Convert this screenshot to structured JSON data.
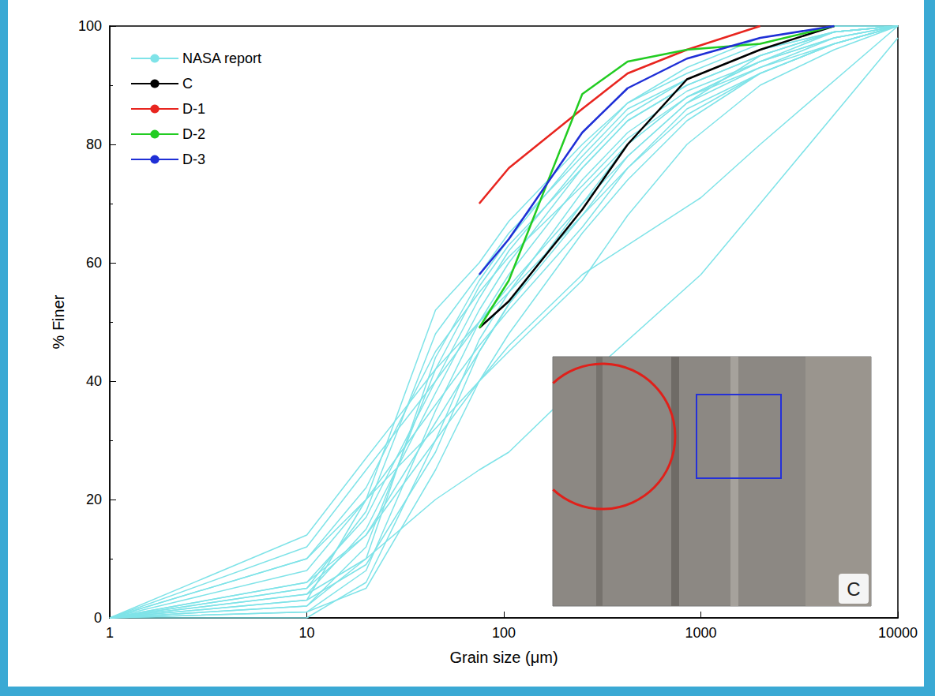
{
  "chart_data": {
    "type": "line",
    "x_label": "Grain size (μm)",
    "y_label": "% Finer",
    "log": "x",
    "xlim": [
      1,
      10000
    ],
    "xticks": [
      1,
      10,
      100,
      1000,
      10000
    ],
    "ylim": [
      0,
      100
    ],
    "yticks": [
      0,
      20,
      40,
      60,
      80,
      100
    ],
    "grid": false,
    "legend": "upper left",
    "annotations": [
      "C"
    ],
    "series": [
      {
        "name": "NASA report",
        "color": "#7fe3e8",
        "x": [
          1,
          10,
          20,
          45,
          75,
          106,
          250,
          425,
          850,
          2000,
          4750,
          10000
        ],
        "values": [
          0,
          2,
          12,
          42,
          56,
          63,
          76,
          84,
          90,
          95,
          99,
          100
        ]
      },
      {
        "name": "NASA report",
        "color": "#7fe3e8",
        "x": [
          1,
          10,
          20,
          45,
          75,
          106,
          250,
          425,
          850,
          2000,
          4750,
          10000
        ],
        "values": [
          0,
          5,
          18,
          48,
          58,
          65,
          78,
          86,
          91,
          96,
          99,
          100
        ]
      },
      {
        "name": "NASA report",
        "color": "#7fe3e8",
        "x": [
          1,
          10,
          20,
          45,
          75,
          106,
          250,
          425,
          850,
          2000,
          4750,
          10000
        ],
        "values": [
          0,
          1,
          8,
          35,
          50,
          58,
          74,
          82,
          89,
          94,
          98,
          100
        ]
      },
      {
        "name": "NASA report",
        "color": "#7fe3e8",
        "x": [
          1,
          10,
          20,
          45,
          75,
          106,
          250,
          425,
          850,
          2000,
          4750,
          10000
        ],
        "values": [
          0,
          10,
          22,
          45,
          55,
          61,
          73,
          81,
          88,
          94,
          98,
          100
        ]
      },
      {
        "name": "NASA report",
        "color": "#7fe3e8",
        "x": [
          1,
          10,
          20,
          45,
          75,
          106,
          250,
          425,
          850,
          2000,
          4750,
          10000
        ],
        "values": [
          0,
          3,
          20,
          52,
          60,
          67,
          80,
          87,
          92,
          97,
          100,
          100
        ]
      },
      {
        "name": "NASA report",
        "color": "#7fe3e8",
        "x": [
          1,
          10,
          20,
          45,
          75,
          106,
          250,
          425,
          850,
          2000,
          4750,
          10000
        ],
        "values": [
          0,
          12,
          25,
          40,
          50,
          56,
          70,
          78,
          87,
          93,
          97,
          100
        ]
      },
      {
        "name": "NASA report",
        "color": "#7fe3e8",
        "x": [
          1,
          10,
          20,
          45,
          75,
          106,
          250,
          425,
          850,
          2000,
          4750,
          10000
        ],
        "values": [
          0,
          0,
          6,
          30,
          47,
          55,
          72,
          80,
          88,
          93,
          98,
          100
        ]
      },
      {
        "name": "NASA report",
        "color": "#7fe3e8",
        "x": [
          1,
          10,
          20,
          45,
          75,
          106,
          250,
          425,
          850,
          2000,
          4750,
          10000
        ],
        "values": [
          0,
          4,
          15,
          38,
          52,
          60,
          76,
          84,
          90,
          95,
          99,
          100
        ]
      },
      {
        "name": "NASA report",
        "color": "#7fe3e8",
        "x": [
          1,
          10,
          20,
          45,
          75,
          106,
          250,
          425,
          850,
          2000,
          4750,
          10000
        ],
        "values": [
          0,
          8,
          20,
          36,
          46,
          52,
          66,
          76,
          86,
          92,
          97,
          100
        ]
      },
      {
        "name": "NASA report",
        "color": "#7fe3e8",
        "x": [
          1,
          10,
          20,
          45,
          75,
          106,
          250,
          425,
          850,
          2000,
          4750,
          10000
        ],
        "values": [
          0,
          2,
          10,
          44,
          57,
          64,
          79,
          87,
          93,
          98,
          100,
          100
        ]
      },
      {
        "name": "NASA report",
        "color": "#7fe3e8",
        "x": [
          1,
          10,
          20,
          45,
          75,
          106,
          250,
          425,
          850,
          2000,
          4750,
          10000
        ],
        "values": [
          0,
          14,
          27,
          42,
          50,
          55,
          68,
          76,
          85,
          92,
          97,
          100
        ]
      },
      {
        "name": "NASA report",
        "color": "#7fe3e8",
        "x": [
          1,
          10,
          20,
          45,
          75,
          106,
          250,
          425,
          850,
          2000,
          4750,
          10000
        ],
        "values": [
          0,
          1,
          5,
          25,
          40,
          48,
          65,
          74,
          84,
          92,
          97,
          100
        ]
      },
      {
        "name": "NASA report",
        "color": "#7fe3e8",
        "x": [
          1,
          10,
          20,
          45,
          75,
          106,
          250,
          425,
          850,
          2000,
          4750,
          10000
        ],
        "values": [
          0,
          5,
          14,
          33,
          45,
          53,
          70,
          80,
          88,
          94,
          99,
          100
        ]
      },
      {
        "name": "NASA report",
        "color": "#7fe3e8",
        "x": [
          1,
          10,
          20,
          45,
          75,
          106,
          250,
          425,
          850,
          2000,
          4750,
          10000
        ],
        "values": [
          0,
          6,
          17,
          40,
          54,
          62,
          77,
          85,
          91,
          96,
          99,
          100
        ]
      },
      {
        "name": "NASA report",
        "color": "#7fe3e8",
        "x": [
          1,
          10,
          20,
          45,
          75,
          106,
          250,
          425,
          850,
          2000,
          4750,
          10000
        ],
        "values": [
          0,
          10,
          20,
          32,
          40,
          45,
          57,
          68,
          80,
          90,
          96,
          100
        ]
      },
      {
        "name": "NASA report",
        "color": "#7fe3e8",
        "x": [
          1,
          10,
          20,
          45,
          75,
          106,
          250,
          425,
          850,
          2000,
          4750,
          10000
        ],
        "values": [
          0,
          3,
          9,
          28,
          45,
          53,
          68,
          78,
          87,
          95,
          99,
          100
        ]
      },
      {
        "name": "NASA report",
        "color": "#7fe3e8",
        "x": [
          1,
          10,
          20,
          45,
          75,
          106,
          250,
          1000,
          2000,
          10000
        ],
        "values": [
          0,
          4,
          10,
          20,
          25,
          28,
          40,
          58,
          70,
          98
        ]
      },
      {
        "name": "NASA report",
        "color": "#7fe3e8",
        "x": [
          1,
          10,
          20,
          45,
          75,
          106,
          250,
          1000,
          2000,
          10000
        ],
        "values": [
          0,
          6,
          14,
          30,
          40,
          46,
          58,
          71,
          80,
          100
        ]
      },
      {
        "name": "C",
        "color": "#000000",
        "x": [
          75,
          106,
          250,
          425,
          850,
          2000,
          4750
        ],
        "values": [
          49,
          53.5,
          69,
          80,
          91,
          96,
          100
        ]
      },
      {
        "name": "D-1",
        "color": "#e8251f",
        "x": [
          75,
          106,
          250,
          425,
          850,
          2000
        ],
        "values": [
          70,
          76,
          86,
          92,
          96,
          100
        ]
      },
      {
        "name": "D-2",
        "color": "#22cc22",
        "x": [
          75,
          106,
          250,
          425,
          850,
          2000,
          4750
        ],
        "values": [
          49,
          57,
          88.5,
          94,
          96,
          97,
          100
        ]
      },
      {
        "name": "D-3",
        "color": "#1f2fd6",
        "x": [
          75,
          106,
          250,
          425,
          850,
          2000,
          4750
        ],
        "values": [
          58,
          64,
          82,
          89.5,
          94.5,
          98,
          100
        ]
      }
    ]
  }
}
